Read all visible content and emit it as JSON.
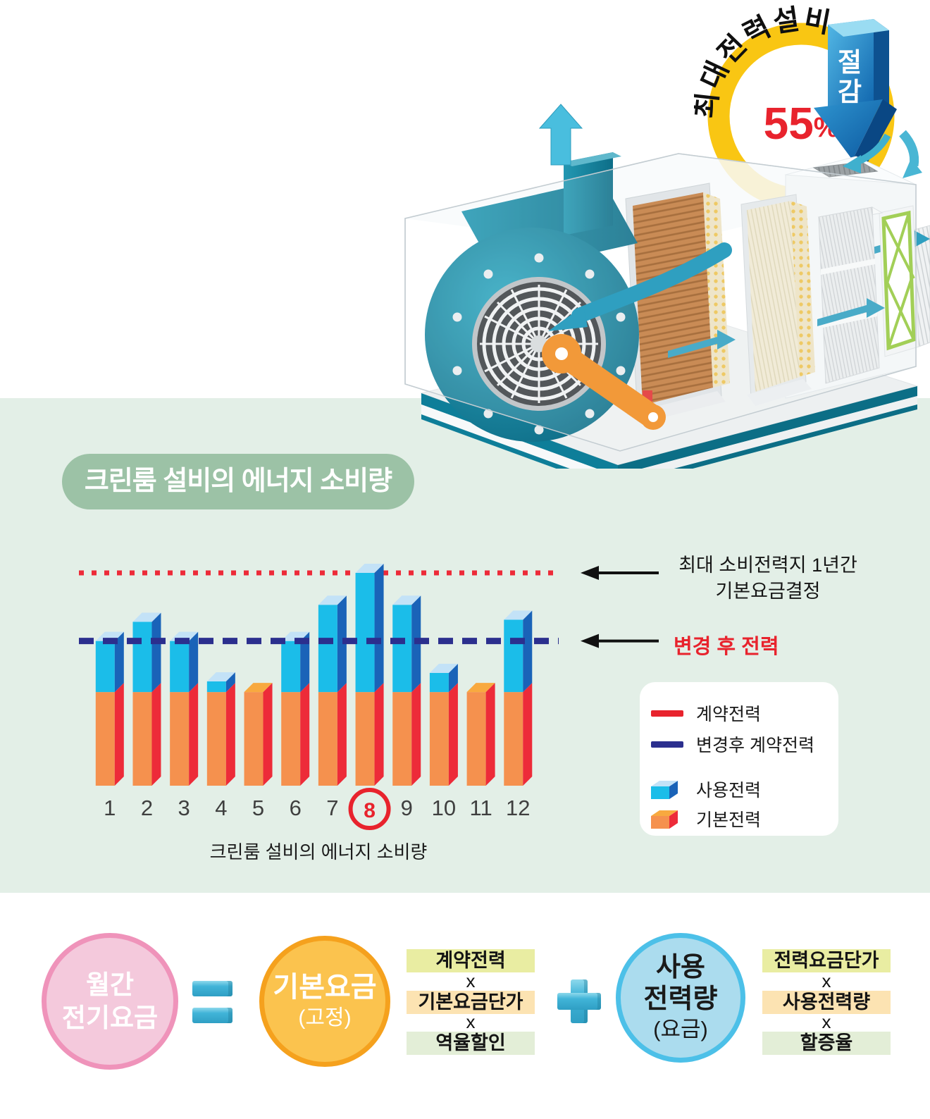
{
  "badge": {
    "arc_text": "최대전력설비",
    "percent": "55",
    "percent_sign": "%",
    "arrow_label": "절감",
    "arrow_label_chars": [
      "절",
      "감"
    ],
    "ring_color": "#f9c613",
    "percent_color": "#e8232d"
  },
  "section_header": {
    "label": "크린룸 설비의 에너지 소비량"
  },
  "chart_data": {
    "type": "bar",
    "title": "크린룸 설비의 에너지 소비량",
    "categories": [
      "1",
      "2",
      "3",
      "4",
      "5",
      "6",
      "7",
      "8",
      "9",
      "10",
      "11",
      "12"
    ],
    "highlighted_category": "8",
    "totals": [
      68,
      77,
      68,
      49,
      44,
      68,
      85,
      100,
      85,
      53,
      44,
      78
    ],
    "base_value": 44,
    "series": [
      {
        "name": "기본전력",
        "values": [
          44,
          44,
          44,
          44,
          44,
          44,
          44,
          44,
          44,
          44,
          44,
          44
        ]
      },
      {
        "name": "사용전력",
        "values": [
          24,
          33,
          24,
          5,
          0,
          24,
          41,
          56,
          41,
          9,
          0,
          34
        ]
      }
    ],
    "unit": "relative power (peak month = 100)",
    "ylim": [
      0,
      110
    ],
    "grid": false,
    "legend_position": "right",
    "reference_lines": [
      {
        "label": "계약전력",
        "value": 100,
        "style": "dotted",
        "color": "#ed2b39"
      },
      {
        "label": "변경후 계약전력",
        "value": 68,
        "style": "dashed",
        "color": "#2b2f8e"
      }
    ],
    "colors": {
      "use_front": "#1bbde9",
      "use_side": "#1a63b8",
      "use_top": "#c3e2f7",
      "base_front": "#f5914e",
      "base_side": "#ed2b39",
      "base_top": "#f8a93f",
      "month_label": "#3f3f3f",
      "highlight": "#e8232d"
    }
  },
  "annotations": {
    "peak_line1": "최대 소비전력지 1년간",
    "peak_line2": "기본요금결정",
    "changed_line": "변경 후 전력"
  },
  "legend": {
    "items": [
      {
        "label": "계약전력",
        "swatch": "line",
        "color": "#e8232d"
      },
      {
        "label": "변경후 계약전력",
        "swatch": "line",
        "color": "#2b2f8e"
      },
      {
        "label": "사용전력",
        "swatch": "cube",
        "color": "#1bbde9"
      },
      {
        "label": "기본전력",
        "swatch": "cube",
        "color": "#f5914e"
      }
    ]
  },
  "caption": "크린룸 설비의 에너지 소비량",
  "formula": {
    "monthly": {
      "line1": "월간",
      "line2": "전기요금"
    },
    "basic": {
      "line1": "기본요금",
      "line2": "(고정)"
    },
    "usage": {
      "line1": "사용",
      "line2": "전력량",
      "line3": "(요금)"
    },
    "stack1": [
      "계약전력",
      "기본요금단가",
      "역율할인"
    ],
    "stack2": [
      "전력요금단가",
      "사용전력량",
      "할증율"
    ],
    "times": "x",
    "stack_colors": [
      "#e9eda2",
      "#fce3b2",
      "#e3eed7"
    ]
  }
}
